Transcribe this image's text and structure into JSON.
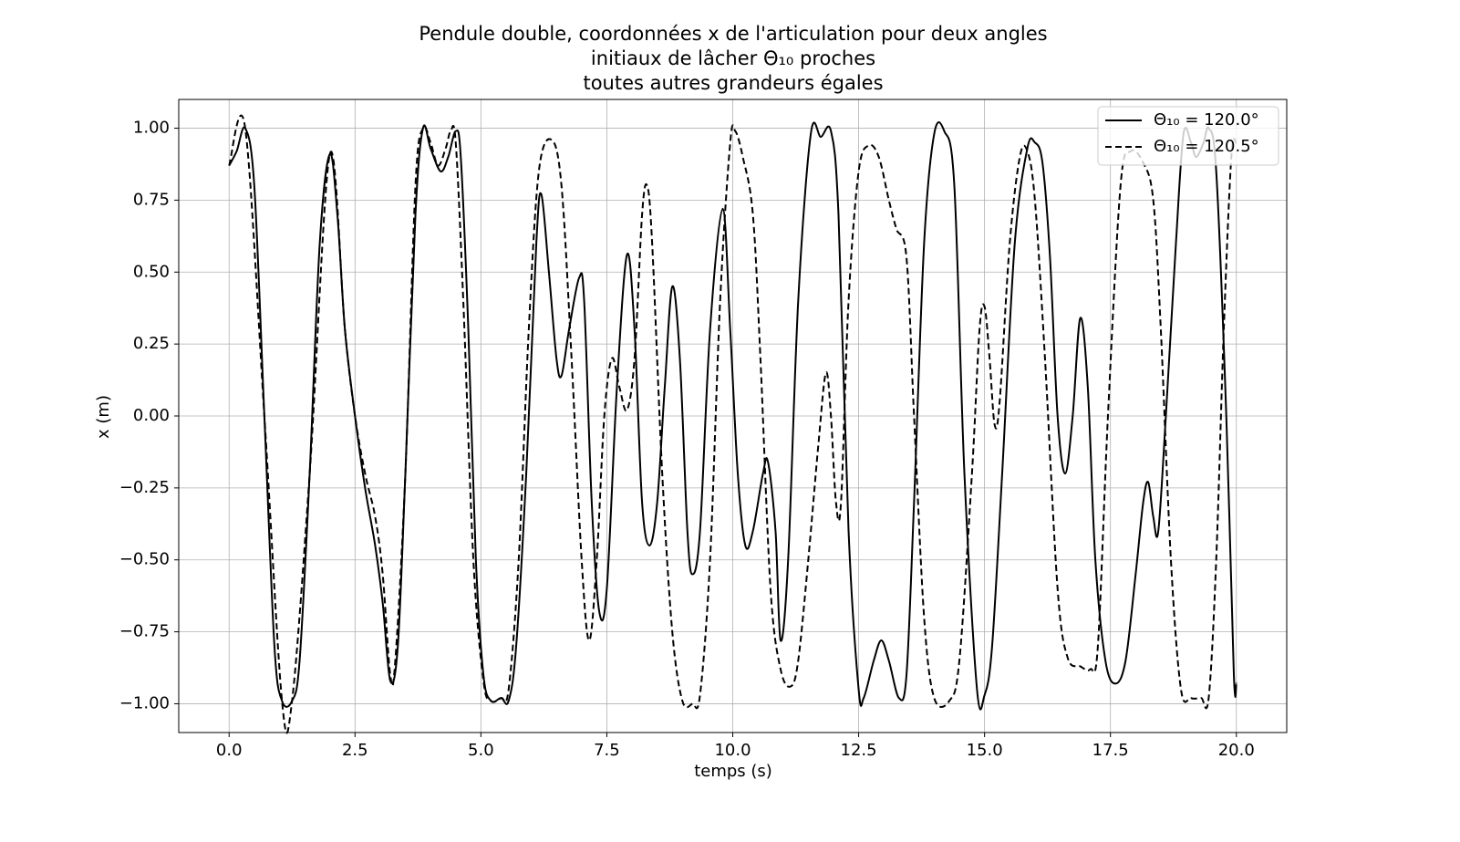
{
  "chart_data": {
    "type": "line",
    "title": [
      "Pendule double, coordonnées x de l'articulation pour deux angles",
      "initiaux de lâcher Θ₁₀ proches",
      "toutes autres grandeurs égales"
    ],
    "xlabel": "temps (s)",
    "ylabel": "x (m)",
    "xlim": [
      -1.0,
      21.0
    ],
    "ylim": [
      -1.1,
      1.1
    ],
    "xticks": [
      {
        "value": 0,
        "label": "0.0"
      },
      2.5,
      {
        "value": 5,
        "label": "5.0"
      },
      7.5,
      {
        "value": 10,
        "label": "10.0"
      },
      12.5,
      {
        "value": 15,
        "label": "15.0"
      },
      17.5,
      {
        "value": 20,
        "label": "20.0"
      }
    ],
    "yticks": [
      {
        "value": -1,
        "label": "−1.00"
      },
      {
        "value": -0.75,
        "label": "−0.75"
      },
      {
        "value": -0.5,
        "label": "−0.50"
      },
      {
        "value": -0.25,
        "label": "−0.25"
      },
      {
        "value": 0,
        "label": "0.00"
      },
      {
        "value": 0.25,
        "label": "0.25"
      },
      {
        "value": 0.5,
        "label": "0.50"
      },
      {
        "value": 0.75,
        "label": "0.75"
      },
      {
        "value": 1,
        "label": "1.00"
      }
    ],
    "grid": true,
    "legend": "upper right",
    "series": [
      {
        "name": "Θ₁₀ =  120.0°",
        "color": "#000000",
        "dash": "solid",
        "x": [
          0,
          0.15,
          0.32,
          0.5,
          0.7,
          0.9,
          1.05,
          1.25,
          1.4,
          1.6,
          1.8,
          2.0,
          2.15,
          2.3,
          2.5,
          2.7,
          2.9,
          3.05,
          3.2,
          3.35,
          3.5,
          3.7,
          3.85,
          4.0,
          4.2,
          4.35,
          4.5,
          4.6,
          4.75,
          4.9,
          5.05,
          5.2,
          5.4,
          5.55,
          5.7,
          5.9,
          6.1,
          6.2,
          6.35,
          6.5,
          6.6,
          6.75,
          6.95,
          7.05,
          7.2,
          7.35,
          7.5,
          7.7,
          7.9,
          8.05,
          8.2,
          8.35,
          8.5,
          8.65,
          8.8,
          8.95,
          9.1,
          9.2,
          9.35,
          9.55,
          9.8,
          9.95,
          10.1,
          10.25,
          10.4,
          10.6,
          10.7,
          10.85,
          10.95,
          11.1,
          11.3,
          11.55,
          11.75,
          11.95,
          12.1,
          12.3,
          12.5,
          12.6,
          12.8,
          12.95,
          13.1,
          13.3,
          13.45,
          13.6,
          13.8,
          14.0,
          14.2,
          14.4,
          14.6,
          14.85,
          15.0,
          15.15,
          15.35,
          15.6,
          15.85,
          16.0,
          16.15,
          16.3,
          16.45,
          16.6,
          16.75,
          16.9,
          17.05,
          17.2,
          17.4,
          17.6,
          17.8,
          18.0,
          18.15,
          18.25,
          18.35,
          18.45,
          18.6,
          18.8,
          18.95,
          19.1,
          19.2,
          19.35,
          19.45,
          19.6,
          19.8,
          19.95,
          20.0
        ],
        "values": [
          0.87,
          0.92,
          1.0,
          0.8,
          0.0,
          -0.8,
          -0.99,
          -0.99,
          -0.85,
          -0.2,
          0.6,
          0.91,
          0.7,
          0.3,
          0.0,
          -0.25,
          -0.45,
          -0.65,
          -0.92,
          -0.8,
          -0.2,
          0.7,
          1.0,
          0.93,
          0.85,
          0.9,
          0.99,
          0.9,
          0.3,
          -0.5,
          -0.9,
          -0.99,
          -0.98,
          -0.99,
          -0.8,
          -0.2,
          0.6,
          0.77,
          0.5,
          0.2,
          0.14,
          0.3,
          0.48,
          0.4,
          -0.3,
          -0.68,
          -0.6,
          0.1,
          0.56,
          0.3,
          -0.3,
          -0.45,
          -0.3,
          0.1,
          0.45,
          0.2,
          -0.4,
          -0.55,
          -0.4,
          0.3,
          0.72,
          0.3,
          -0.2,
          -0.45,
          -0.4,
          -0.2,
          -0.16,
          -0.4,
          -0.78,
          -0.5,
          0.4,
          0.98,
          0.97,
          0.99,
          0.7,
          -0.4,
          -0.95,
          -0.98,
          -0.85,
          -0.78,
          -0.85,
          -0.98,
          -0.9,
          -0.3,
          0.6,
          0.98,
          0.99,
          0.8,
          -0.2,
          -0.95,
          -0.97,
          -0.8,
          -0.2,
          0.6,
          0.93,
          0.95,
          0.88,
          0.55,
          0.0,
          -0.2,
          0.0,
          0.34,
          0.1,
          -0.5,
          -0.85,
          -0.93,
          -0.85,
          -0.55,
          -0.3,
          -0.23,
          -0.35,
          -0.4,
          0.0,
          0.6,
          0.98,
          0.95,
          0.9,
          0.95,
          1.0,
          0.85,
          0.0,
          -0.9,
          -0.93
        ]
      },
      {
        "name": "Θ₁₀ =  120.5°",
        "color": "#000000",
        "dash": "dashed",
        "x": [
          0,
          0.32,
          0.7,
          1.05,
          1.25,
          1.6,
          2.0,
          2.3,
          2.5,
          2.7,
          2.9,
          3.05,
          3.2,
          3.3,
          3.5,
          3.7,
          3.85,
          4.0,
          4.15,
          4.3,
          4.4,
          4.5,
          4.65,
          4.85,
          5.05,
          5.2,
          5.4,
          5.55,
          5.75,
          5.95,
          6.15,
          6.4,
          6.6,
          6.8,
          7.0,
          7.15,
          7.3,
          7.45,
          7.6,
          7.75,
          7.9,
          8.05,
          8.2,
          8.3,
          8.4,
          8.6,
          8.8,
          9.0,
          9.2,
          9.35,
          9.55,
          9.75,
          9.95,
          10.05,
          10.2,
          10.4,
          10.55,
          10.75,
          10.95,
          11.15,
          11.3,
          11.5,
          11.7,
          11.85,
          11.95,
          12.05,
          12.15,
          12.3,
          12.5,
          12.7,
          12.9,
          13.1,
          13.25,
          13.45,
          13.6,
          13.8,
          14.0,
          14.3,
          14.5,
          14.75,
          14.9,
          15.0,
          15.1,
          15.2,
          15.3,
          15.5,
          15.7,
          15.85,
          16.0,
          16.2,
          16.45,
          16.65,
          16.9,
          17.1,
          17.25,
          17.45,
          17.7,
          17.9,
          18.15,
          18.35,
          18.5,
          18.7,
          18.9,
          19.1,
          19.3,
          19.45,
          19.6,
          19.75,
          19.9,
          20.0
        ],
        "values": [
          0.87,
          1.0,
          0.0,
          -0.99,
          -0.99,
          -0.2,
          0.91,
          0.3,
          0.0,
          -0.2,
          -0.35,
          -0.55,
          -0.9,
          -0.85,
          -0.2,
          0.8,
          1.0,
          0.95,
          0.87,
          0.93,
          0.99,
          0.95,
          0.4,
          -0.5,
          -0.92,
          -0.99,
          -0.98,
          -0.95,
          -0.5,
          0.3,
          0.85,
          0.96,
          0.8,
          0.2,
          -0.5,
          -0.78,
          -0.5,
          0.0,
          0.2,
          0.1,
          0.02,
          0.2,
          0.7,
          0.8,
          0.6,
          -0.2,
          -0.75,
          -0.99,
          -1.0,
          -0.97,
          -0.5,
          0.4,
          0.95,
          0.99,
          0.9,
          0.7,
          0.2,
          -0.6,
          -0.88,
          -0.94,
          -0.85,
          -0.5,
          -0.1,
          0.15,
          0.0,
          -0.3,
          -0.3,
          0.4,
          0.85,
          0.94,
          0.9,
          0.75,
          0.65,
          0.55,
          0.0,
          -0.7,
          -0.98,
          -0.99,
          -0.85,
          -0.2,
          0.3,
          0.38,
          0.2,
          -0.03,
          0.05,
          0.6,
          0.9,
          0.92,
          0.75,
          0.2,
          -0.6,
          -0.84,
          -0.87,
          -0.88,
          -0.8,
          0.0,
          0.8,
          0.92,
          0.88,
          0.75,
          0.3,
          -0.5,
          -0.95,
          -0.98,
          -0.98,
          -0.98,
          -0.5,
          0.3,
          0.9,
          0.95
        ]
      }
    ]
  }
}
